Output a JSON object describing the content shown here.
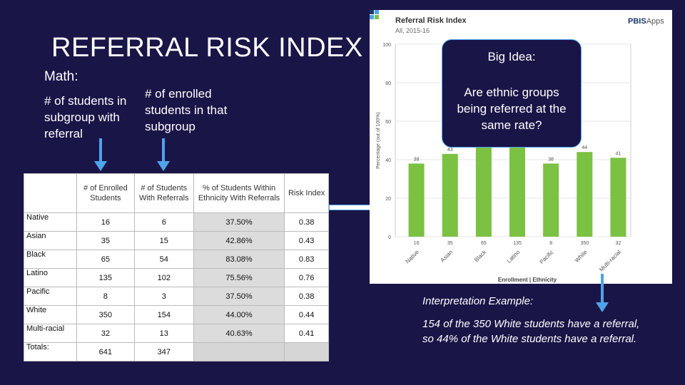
{
  "slide": {
    "title": "REFERRAL RISK INDEX",
    "math_label": "Math:",
    "numerator": "# of students in subgroup with referral",
    "denominator": "# of enrolled students in that subgroup"
  },
  "table": {
    "headers": [
      "",
      "# of Enrolled Students",
      "# of Students With Referrals",
      "% of Students Within Ethnicity With Referrals",
      "Risk Index"
    ],
    "rows": [
      {
        "label": "Native",
        "enrolled": "16",
        "referrals": "6",
        "pct": "37.50%",
        "risk": "0.38"
      },
      {
        "label": "Asian",
        "enrolled": "35",
        "referrals": "15",
        "pct": "42.86%",
        "risk": "0.43"
      },
      {
        "label": "Black",
        "enrolled": "65",
        "referrals": "54",
        "pct": "83.08%",
        "risk": "0.83"
      },
      {
        "label": "Latino",
        "enrolled": "135",
        "referrals": "102",
        "pct": "75.56%",
        "risk": "0.76"
      },
      {
        "label": "Pacific",
        "enrolled": "8",
        "referrals": "3",
        "pct": "37.50%",
        "risk": "0.38"
      },
      {
        "label": "White",
        "enrolled": "350",
        "referrals": "154",
        "pct": "44.00%",
        "risk": "0.44"
      },
      {
        "label": "Multi-racial",
        "enrolled": "32",
        "referrals": "13",
        "pct": "40.63%",
        "risk": "0.41"
      },
      {
        "label": "Totals:",
        "enrolled": "641",
        "referrals": "347",
        "pct": "",
        "risk": ""
      }
    ]
  },
  "chart_panel": {
    "title": "Referral Risk Index",
    "subtitle": "All, 2015-16",
    "brand_prefix": "PBIS",
    "brand_suffix": "Apps"
  },
  "chart_data": {
    "type": "bar",
    "categories": [
      "Native",
      "Asian",
      "Black",
      "Latino",
      "Pacific",
      "White",
      "Multi-racial"
    ],
    "enrolled_labels": [
      "16",
      "35",
      "65",
      "135",
      "8",
      "350",
      "32"
    ],
    "values": [
      38,
      43,
      83,
      76,
      38,
      44,
      41
    ],
    "value_labels": [
      "38",
      "43",
      "",
      "",
      "38",
      "44",
      "41"
    ],
    "ylabel": "Percentage (out of 100%)",
    "xlabel": "Enrollment | Ethnicity",
    "ylim": [
      0,
      100
    ],
    "yticks": [
      0,
      20,
      40,
      60,
      80,
      100
    ],
    "bar_color": "#7bc142"
  },
  "callout": {
    "heading": "Big Idea:",
    "question": "Are ethnic groups being referred at the same rate?"
  },
  "interpretation": {
    "heading": "Interpretation Example:",
    "text": "154 of the 350 White students have a referral, so 44% of the White students have a referral."
  },
  "colors": {
    "background": "#1a1547",
    "arrow": "#4fa3e8"
  }
}
